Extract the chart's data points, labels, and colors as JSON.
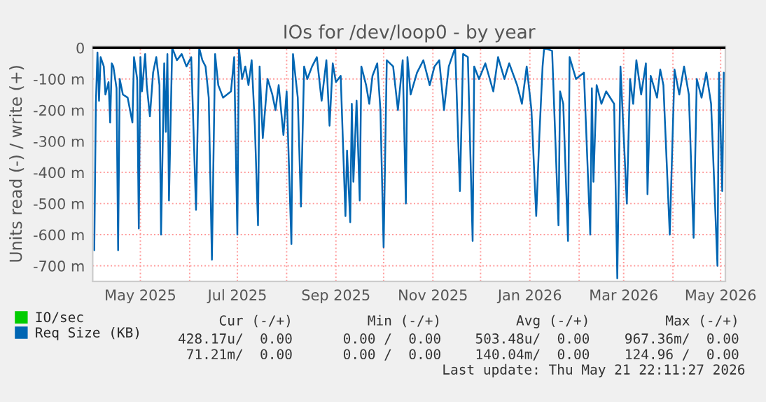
{
  "chart_data": {
    "type": "line",
    "title": "IOs for /dev/loop0 - by year",
    "ylabel": "Units read (-) / write (+)",
    "xlim": [
      "2025-04-01",
      "2026-05-04"
    ],
    "xticks": [
      {
        "value": "2025-05-01",
        "label": "May 2025"
      },
      {
        "value": "2025-06-01",
        "label": null
      },
      {
        "value": "2025-07-01",
        "label": "Jul 2025"
      },
      {
        "value": "2025-08-01",
        "label": null
      },
      {
        "value": "2025-09-01",
        "label": "Sep 2025"
      },
      {
        "value": "2025-10-01",
        "label": null
      },
      {
        "value": "2025-11-01",
        "label": "Nov 2025"
      },
      {
        "value": "2025-12-01",
        "label": null
      },
      {
        "value": "2026-01-01",
        "label": "Jan 2026"
      },
      {
        "value": "2026-02-01",
        "label": null
      },
      {
        "value": "2026-03-01",
        "label": "Mar 2026"
      },
      {
        "value": "2026-04-01",
        "label": null
      },
      {
        "value": "2026-05-01",
        "label": "May 2026"
      }
    ],
    "ylim": [
      -750,
      5
    ],
    "yticks": [
      0,
      {
        "value": -100,
        "label": "-100 m"
      },
      {
        "value": -200,
        "label": "-200 m"
      },
      {
        "value": -300,
        "label": "-300 m"
      },
      {
        "value": -400,
        "label": "-400 m"
      },
      {
        "value": -500,
        "label": "-500 m"
      },
      {
        "value": -600,
        "label": "-600 m"
      },
      {
        "value": -700,
        "label": "-700 m"
      }
    ],
    "grid": true,
    "legend": "bottom",
    "line_style": "solid",
    "marker": "none",
    "ref_lines": [
      {
        "axis": "y",
        "value": 0,
        "color": "#000000"
      }
    ],
    "series": [
      {
        "name": "IO/sec",
        "color": "#00cc00"
      },
      {
        "name": "Req Size (KB)",
        "color": "#0066b3",
        "x": [
          "2025-04-02",
          "2025-04-03",
          "2025-04-04",
          "2025-04-05",
          "2025-04-06",
          "2025-04-08",
          "2025-04-09",
          "2025-04-11",
          "2025-04-12",
          "2025-04-13",
          "2025-04-14",
          "2025-04-16",
          "2025-04-17",
          "2025-04-18",
          "2025-04-20",
          "2025-04-23",
          "2025-04-26",
          "2025-04-27",
          "2025-04-29",
          "2025-04-30",
          "2025-05-01",
          "2025-05-02",
          "2025-05-04",
          "2025-05-05",
          "2025-05-07",
          "2025-05-09",
          "2025-05-11",
          "2025-05-13",
          "2025-05-14",
          "2025-05-16",
          "2025-05-17",
          "2025-05-18",
          "2025-05-19",
          "2025-05-21",
          "2025-05-24",
          "2025-05-27",
          "2025-05-30",
          "2025-06-02",
          "2025-06-05",
          "2025-06-07",
          "2025-06-09",
          "2025-06-11",
          "2025-06-13",
          "2025-06-15",
          "2025-06-17",
          "2025-06-19",
          "2025-06-22",
          "2025-06-27",
          "2025-06-29",
          "2025-07-01",
          "2025-07-02",
          "2025-07-04",
          "2025-07-06",
          "2025-07-08",
          "2025-07-10",
          "2025-07-12",
          "2025-07-14",
          "2025-07-15",
          "2025-07-17",
          "2025-07-20",
          "2025-07-23",
          "2025-07-25",
          "2025-07-27",
          "2025-07-30",
          "2025-08-01",
          "2025-08-04",
          "2025-08-05",
          "2025-08-08",
          "2025-08-10",
          "2025-08-12",
          "2025-08-14",
          "2025-08-17",
          "2025-08-20",
          "2025-08-23",
          "2025-08-26",
          "2025-08-28",
          "2025-08-30",
          "2025-09-01",
          "2025-09-04",
          "2025-09-07",
          "2025-09-08",
          "2025-09-10",
          "2025-09-11",
          "2025-09-12",
          "2025-09-14",
          "2025-09-16",
          "2025-09-17",
          "2025-09-20",
          "2025-09-22",
          "2025-09-24",
          "2025-09-27",
          "2025-09-29",
          "2025-10-01",
          "2025-10-03",
          "2025-10-07",
          "2025-10-10",
          "2025-10-13",
          "2025-10-15",
          "2025-10-16",
          "2025-10-18",
          "2025-10-22",
          "2025-10-26",
          "2025-10-30",
          "2025-11-02",
          "2025-11-05",
          "2025-11-08",
          "2025-11-11",
          "2025-11-15",
          "2025-11-18",
          "2025-11-20",
          "2025-11-23",
          "2025-11-26",
          "2025-11-27",
          "2025-11-30",
          "2025-12-04",
          "2025-12-09",
          "2025-12-12",
          "2025-12-16",
          "2025-12-19",
          "2025-12-24",
          "2025-12-27",
          "2025-12-30",
          "2026-01-02",
          "2026-01-05",
          "2026-01-07",
          "2026-01-09",
          "2026-01-10",
          "2026-01-15",
          "2026-01-19",
          "2026-01-20",
          "2026-01-22",
          "2026-01-25",
          "2026-01-26",
          "2026-01-30",
          "2026-02-04",
          "2026-02-08",
          "2026-02-09",
          "2026-02-10",
          "2026-02-12",
          "2026-02-15",
          "2026-02-18",
          "2026-02-23",
          "2026-02-25",
          "2026-02-27",
          "2026-03-03",
          "2026-03-05",
          "2026-03-07",
          "2026-03-09",
          "2026-03-12",
          "2026-03-15",
          "2026-03-16",
          "2026-03-18",
          "2026-03-22",
          "2026-03-24",
          "2026-03-26",
          "2026-03-30",
          "2026-04-02",
          "2026-04-05",
          "2026-04-08",
          "2026-04-11",
          "2026-04-14",
          "2026-04-16",
          "2026-04-19",
          "2026-04-22",
          "2026-04-25",
          "2026-04-29",
          "2026-04-30",
          "2026-05-02",
          "2026-05-03"
        ],
        "values": [
          -650,
          -180,
          -15,
          -170,
          -30,
          -60,
          -150,
          -110,
          -240,
          -50,
          -60,
          -130,
          -650,
          -100,
          -150,
          -160,
          -240,
          -30,
          -100,
          -580,
          -30,
          -140,
          -20,
          -120,
          -220,
          -80,
          -30,
          -120,
          -600,
          -50,
          -270,
          -20,
          -490,
          0,
          -40,
          -20,
          -60,
          -30,
          -520,
          0,
          -40,
          -60,
          -160,
          -680,
          -20,
          -120,
          -160,
          -140,
          -30,
          -600,
          0,
          -100,
          -60,
          -120,
          -40,
          -250,
          -570,
          -60,
          -290,
          -100,
          -150,
          -200,
          -120,
          -280,
          -140,
          -630,
          -20,
          -160,
          -510,
          -60,
          -100,
          -60,
          -30,
          -170,
          -40,
          -250,
          -50,
          -110,
          -90,
          -540,
          -330,
          -560,
          -180,
          -430,
          -170,
          -490,
          -60,
          -120,
          -180,
          -90,
          -50,
          -200,
          -640,
          -40,
          -60,
          -200,
          -40,
          -500,
          -30,
          -150,
          -80,
          -40,
          -120,
          -60,
          -40,
          -200,
          -60,
          0,
          -460,
          -20,
          -30,
          -620,
          -60,
          -100,
          -50,
          -140,
          -30,
          -100,
          -50,
          -120,
          -180,
          -60,
          -200,
          -540,
          -280,
          -60,
          0,
          -10,
          -570,
          -140,
          -180,
          -620,
          -30,
          -100,
          -80,
          -600,
          -130,
          -430,
          -120,
          -180,
          -140,
          -180,
          -740,
          -60,
          -500,
          -100,
          -180,
          -40,
          -150,
          -50,
          -470,
          -90,
          -160,
          -70,
          -120,
          -600,
          -70,
          -150,
          -60,
          -150,
          -610,
          -100,
          -160,
          -80,
          -180,
          -700,
          -80,
          -460,
          -80
        ]
      }
    ],
    "annotations": [
      "Cur (-/+)",
      "Min (-/+)",
      "Avg (-/+)",
      "Max (-/+)",
      "428.17u/  0.00",
      "0.00 /  0.00",
      "503.48u/  0.00",
      "967.36m/  0.00",
      "71.21m/  0.00",
      "0.00 /  0.00",
      "140.04m/  0.00",
      "124.96 /  0.00",
      "Last update: Thu May 21 22:11:27 2026"
    ]
  }
}
